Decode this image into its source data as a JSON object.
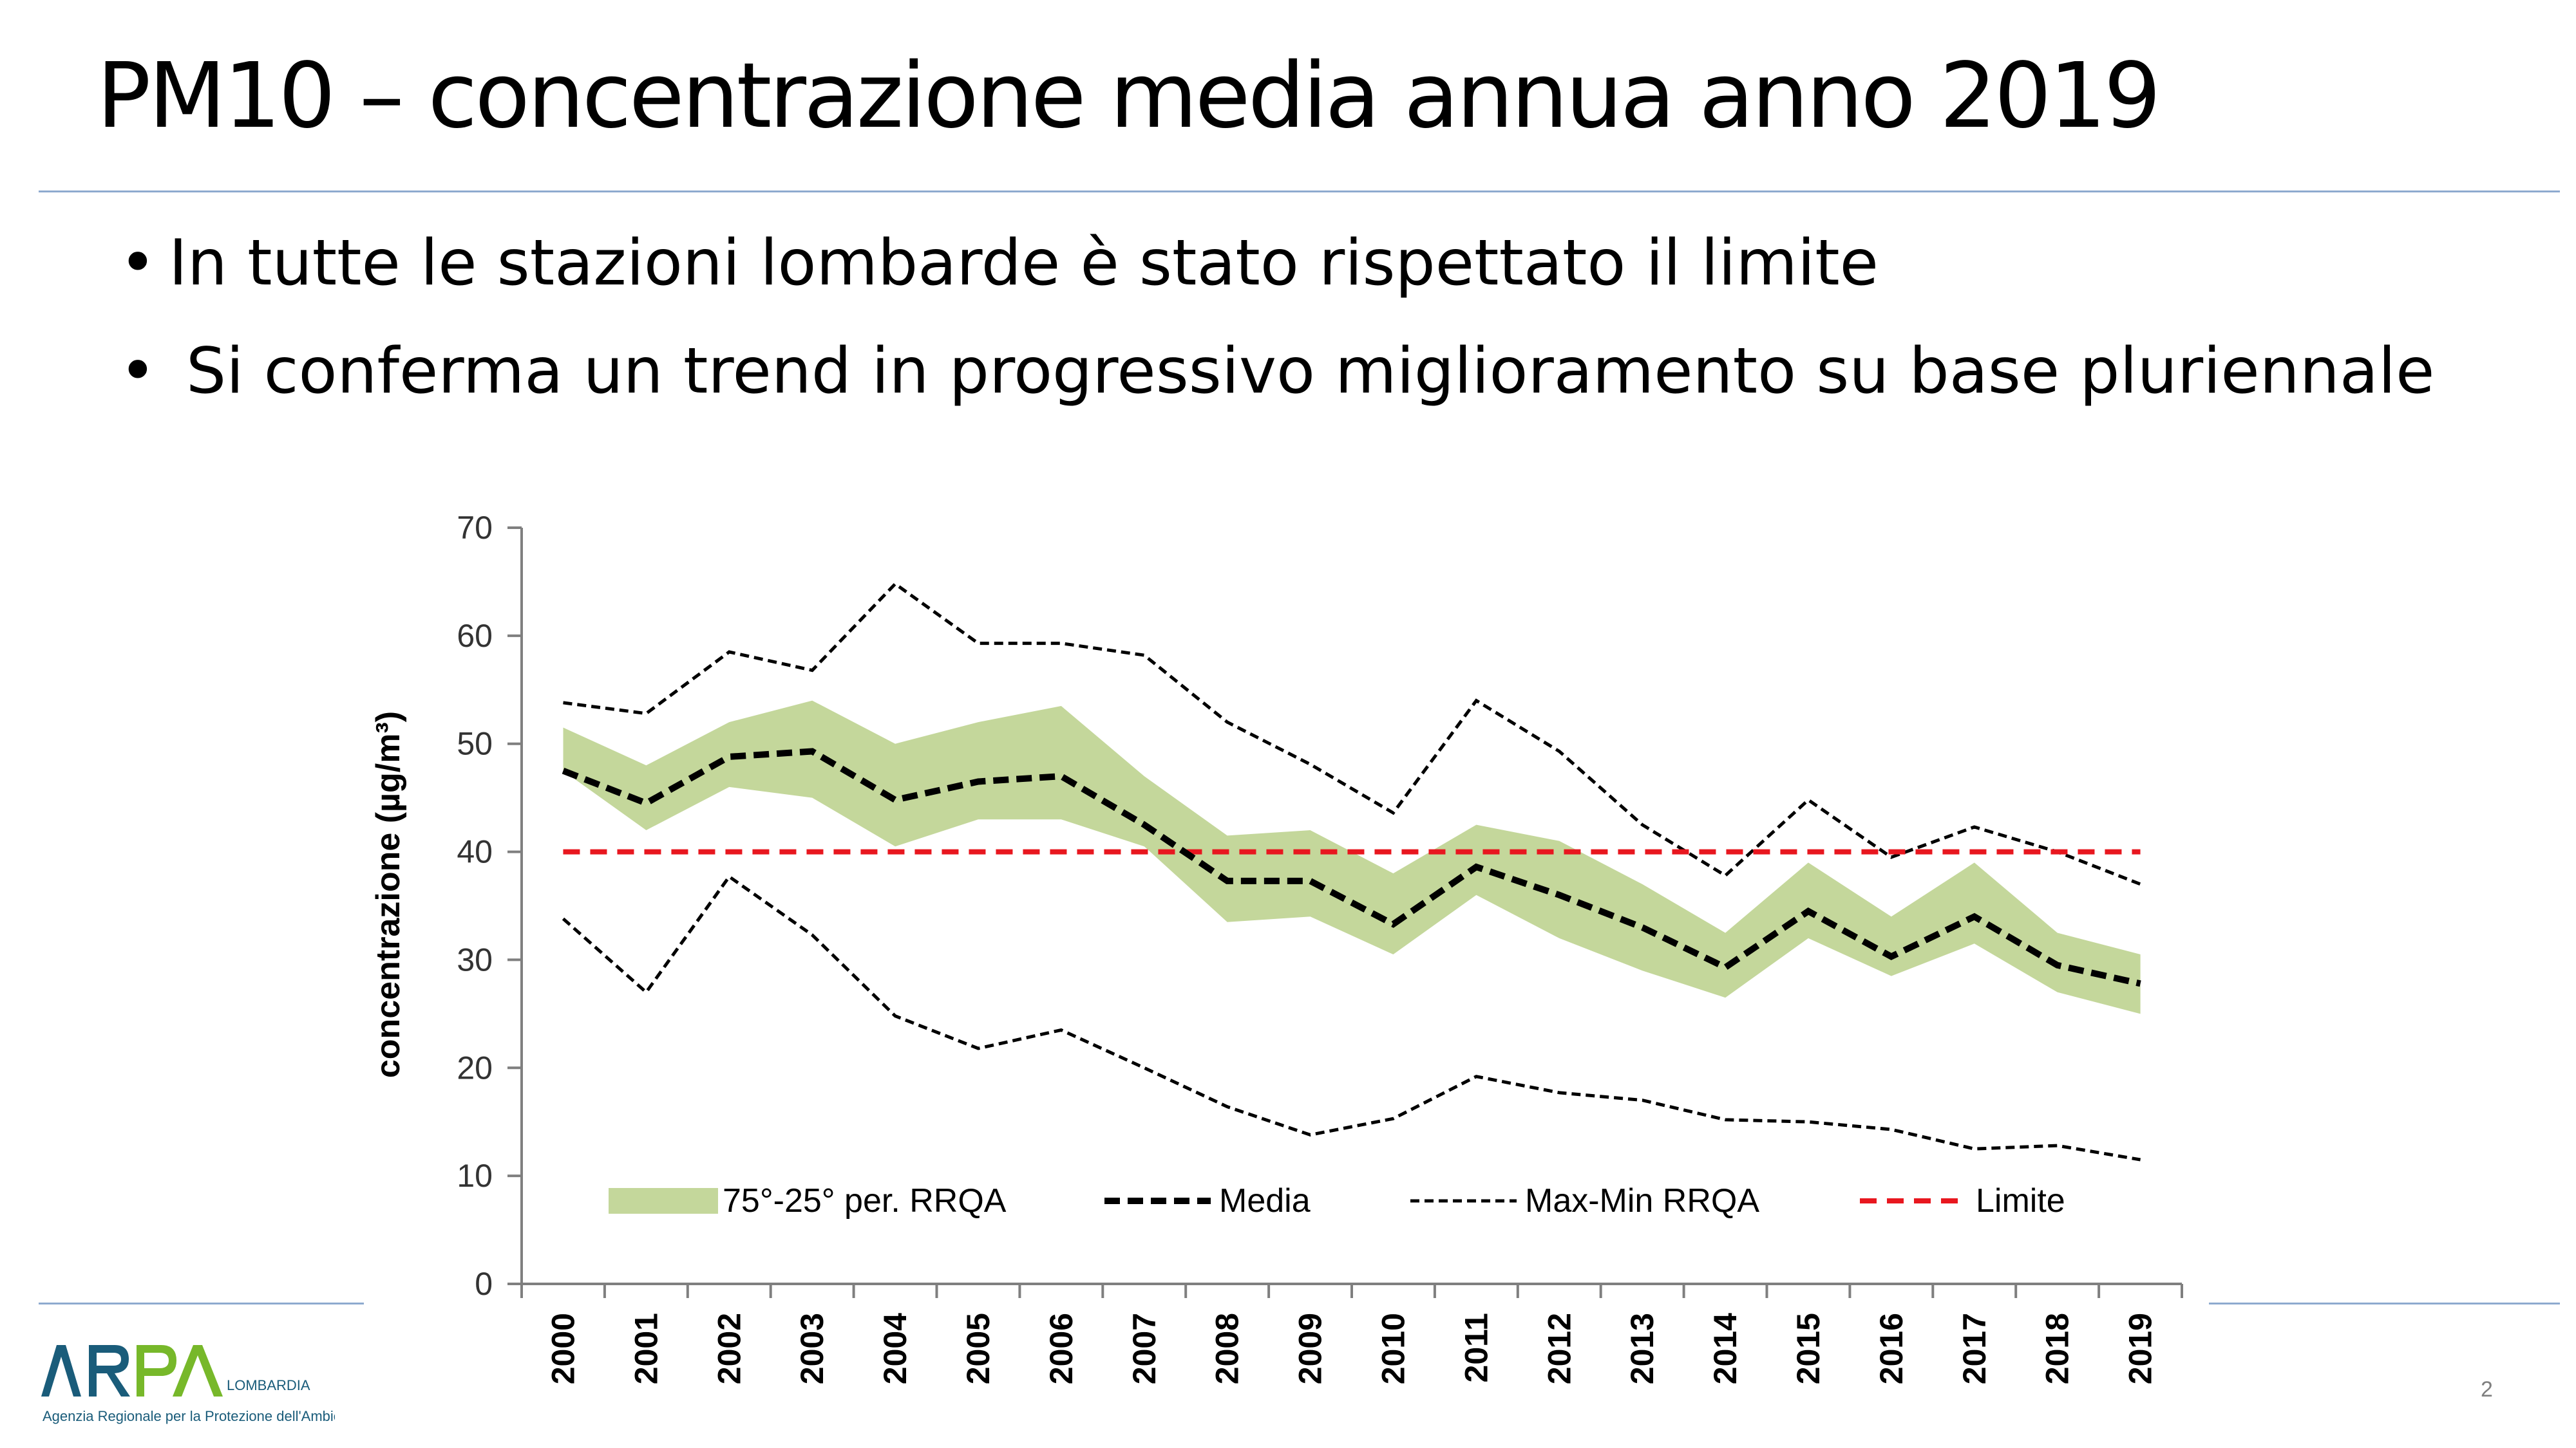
{
  "slide": {
    "title": "PM10 – concentrazione media annua anno 2019",
    "bullets": [
      "In tutte le stazioni lombarde è stato rispettato il limite",
      "Si conferma un trend in progressivo miglioramento su base pluriennale"
    ],
    "page_number": "2"
  },
  "logo": {
    "name": "ARPA",
    "region": "LOMBARDIA",
    "subtitle": "Agenzia Regionale per la Protezione dell'Ambiente",
    "colors": {
      "dark": "#1a5c7a",
      "green": "#77b82a",
      "sub_bg": "#1a5c7a"
    }
  },
  "chart_data": {
    "type": "line",
    "ylabel": "concentrazione (µg/m³)",
    "xlabel": "",
    "ylim": [
      0,
      70
    ],
    "yticks": [
      0,
      10,
      20,
      30,
      40,
      50,
      60,
      70
    ],
    "categories": [
      "2000",
      "2001",
      "2002",
      "2003",
      "2004",
      "2005",
      "2006",
      "2007",
      "2008",
      "2009",
      "2010",
      "2011",
      "2012",
      "2013",
      "2014",
      "2015",
      "2016",
      "2017",
      "2018",
      "2019"
    ],
    "band": {
      "name": "75°-25° per. RRQA",
      "color": "#c4d79b",
      "upper": [
        51.5,
        48,
        52,
        54,
        50,
        52,
        53.5,
        47,
        41.5,
        42,
        38,
        42.5,
        41,
        37,
        32.5,
        39,
        34,
        39,
        32.5,
        30.5
      ],
      "lower": [
        47.5,
        42,
        46,
        45,
        40.5,
        43,
        43,
        40.5,
        33.5,
        34,
        30.5,
        36,
        32,
        29,
        26.5,
        32,
        28.5,
        31.5,
        27,
        25
      ]
    },
    "series": [
      {
        "name": "Media",
        "color": "#000000",
        "style": "bold-dashed",
        "values": [
          47.5,
          44.5,
          48.8,
          49.3,
          44.8,
          46.5,
          47,
          42.5,
          37.3,
          37.3,
          33.3,
          38.6,
          36,
          33,
          29.3,
          34.5,
          30.3,
          34,
          29.5,
          27.8
        ]
      },
      {
        "name": "Max-Min RRQA",
        "color": "#000000",
        "style": "thin-dashed",
        "max": [
          53.8,
          52.8,
          58.5,
          56.8,
          64.8,
          59.3,
          59.3,
          58.2,
          52,
          48.1,
          43.6,
          54,
          49.3,
          42.5,
          37.8,
          44.8,
          39.5,
          42.3,
          40,
          37
        ],
        "min": [
          33.8,
          27,
          37.7,
          32.3,
          24.8,
          21.8,
          23.5,
          20,
          16.4,
          13.8,
          15.3,
          19.2,
          17.7,
          17,
          15.2,
          15,
          14.3,
          12.5,
          12.8,
          11.5
        ]
      },
      {
        "name": "Limite",
        "color": "#e8171f",
        "style": "red-dashed",
        "value": 40
      }
    ],
    "legend": [
      "75°-25° per. RRQA",
      "Media",
      "Max-Min RRQA",
      "Limite"
    ],
    "legend_position": "bottom-inside",
    "grid": false
  }
}
